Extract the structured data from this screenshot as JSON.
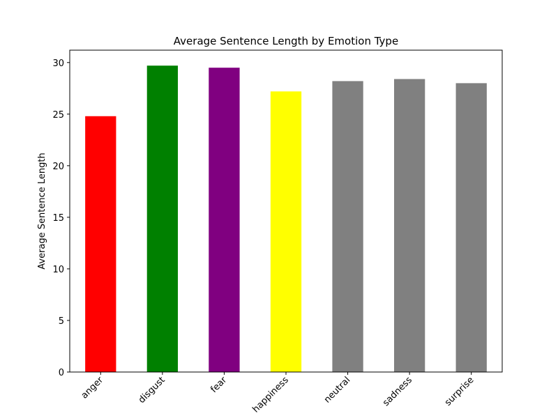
{
  "chart_data": {
    "type": "bar",
    "title": "Average Sentence Length by Emotion Type",
    "xlabel": "",
    "ylabel": "Average Sentence Length",
    "categories": [
      "anger",
      "disgust",
      "fear",
      "happiness",
      "neutral",
      "sadness",
      "surprise"
    ],
    "values": [
      24.8,
      29.7,
      29.5,
      27.2,
      28.2,
      28.4,
      28.0
    ],
    "colors": [
      "#ff0000",
      "#008000",
      "#800080",
      "#ffff00",
      "#808080",
      "#808080",
      "#808080"
    ],
    "ylim": [
      0,
      31.2
    ],
    "yticks": [
      0,
      5,
      10,
      15,
      20,
      25,
      30
    ],
    "grid": false,
    "legend": "none"
  }
}
